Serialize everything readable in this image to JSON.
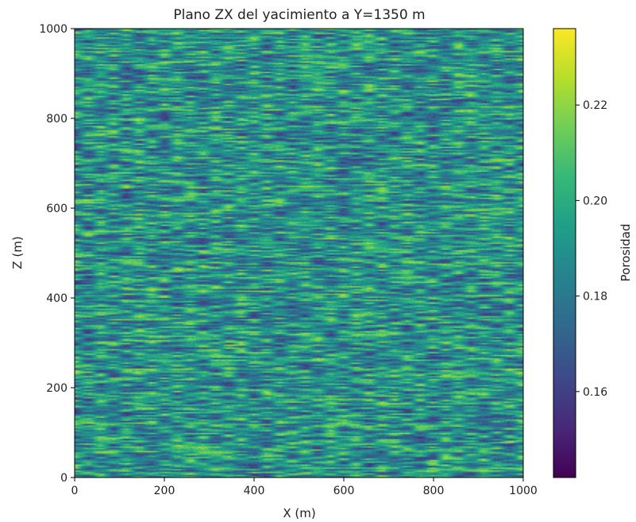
{
  "chart_data": {
    "type": "heatmap",
    "title": "Plano ZX del yacimiento a Y=1350 m",
    "xlabel": "X (m)",
    "ylabel": "Z (m)",
    "xlim": [
      0,
      1000
    ],
    "ylim": [
      0,
      1000
    ],
    "x_ticks": [
      0,
      200,
      400,
      600,
      800,
      1000
    ],
    "y_ticks": [
      0,
      200,
      400,
      600,
      800,
      1000
    ],
    "grid": false,
    "colorbar": {
      "label": "Porosidad",
      "min": 0.142,
      "max": 0.236,
      "ticks": [
        0.16,
        0.18,
        0.2,
        0.22
      ],
      "tick_labels": [
        "0.16",
        "0.18",
        "0.20",
        "0.22"
      ],
      "colormap": "viridis",
      "colormap_stops": [
        "#440154",
        "#482878",
        "#3e4989",
        "#31688e",
        "#26828e",
        "#1f9e89",
        "#35b779",
        "#6ece58",
        "#b5de2b",
        "#fde725"
      ]
    },
    "field": {
      "description_values": "horizontally elongated stochastic porosity field, streaks stretched along X",
      "mean": 0.19,
      "std": 0.017
    }
  }
}
